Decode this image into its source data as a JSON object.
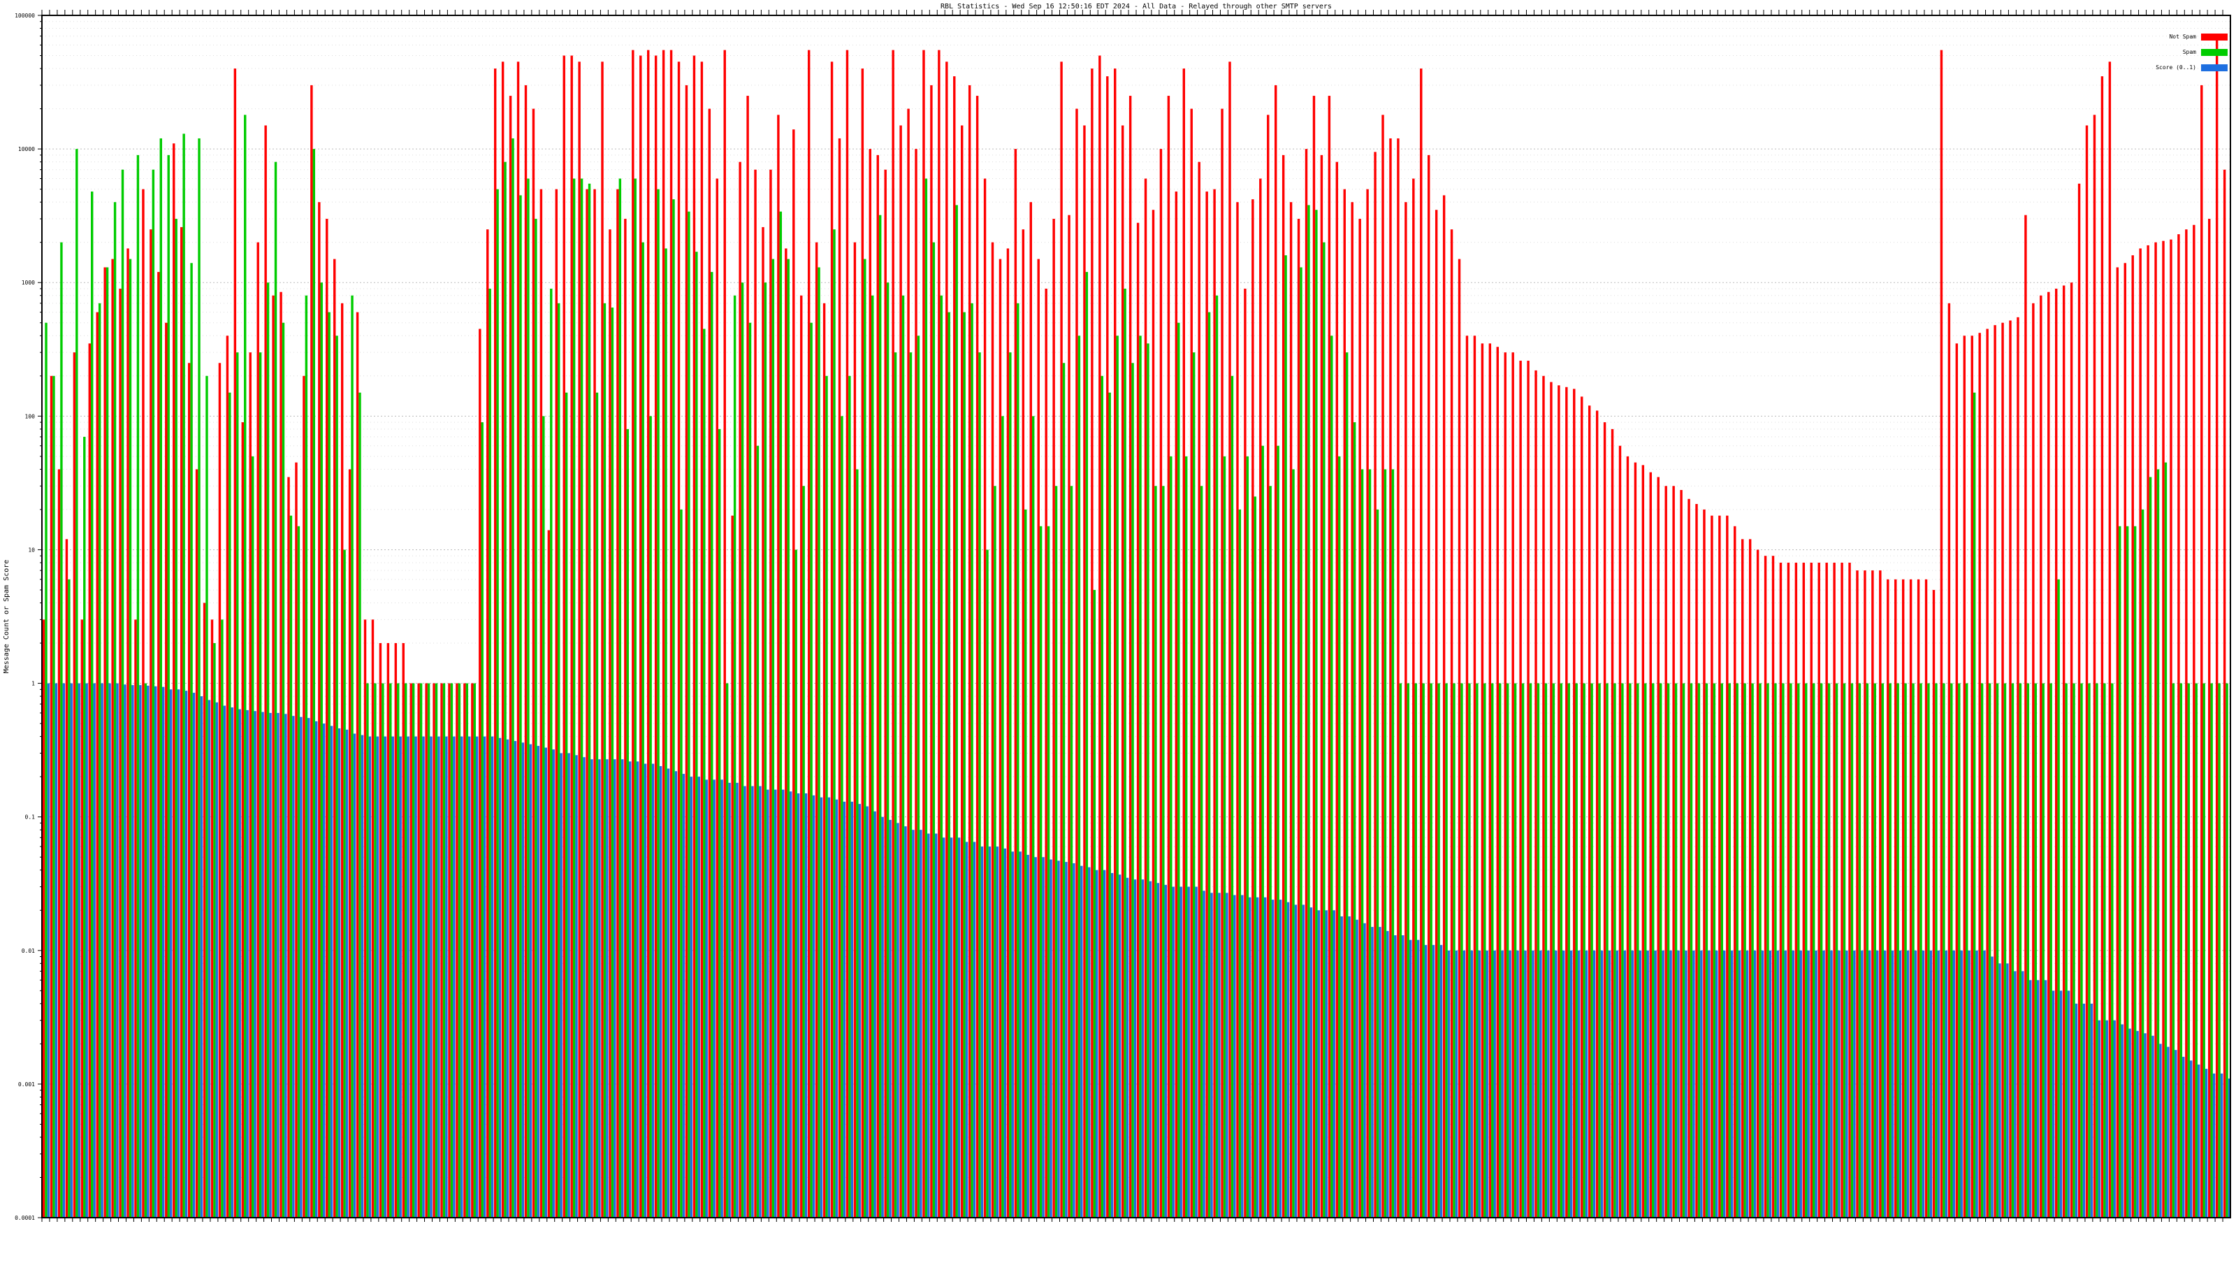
{
  "chart_data": {
    "type": "bar",
    "title": "RBL Statistics - Wed Sep 16 12:50:16 EDT 2024 - All Data - Relayed through other SMTP servers",
    "ylabel": "Message Count or Spam Score",
    "xlabel": "",
    "y_scale": "log",
    "ylim": [
      0.0001,
      100000
    ],
    "y_ticks": [
      "0.0001",
      "0.001",
      "0.01",
      "0.1",
      "1",
      "10",
      "100",
      "1000",
      "10000",
      "100000"
    ],
    "grid": true,
    "legend_placement": "top-right",
    "colors": {
      "not_spam": "#ff0000",
      "spam": "#00cc00",
      "score": "#1e6fe0",
      "background": "#ffffff",
      "grid": "#bbbbbb"
    },
    "series": [
      {
        "name": "Not Spam",
        "values": [
          3,
          200,
          40,
          12,
          300,
          3,
          350,
          600,
          1300,
          1500,
          900,
          1800,
          3,
          5000,
          2500,
          1200,
          500,
          11000,
          2600,
          250,
          40,
          4,
          3,
          250,
          400,
          40000,
          90,
          300,
          2000,
          15000,
          800,
          850,
          35,
          45,
          200,
          30000,
          4000,
          3000,
          1500,
          700,
          40,
          600,
          3,
          3,
          2,
          2,
          2,
          2,
          1,
          1,
          1,
          1,
          1,
          1,
          1,
          1,
          1,
          450,
          2500,
          40000,
          45000,
          25000,
          45000,
          30000,
          20000,
          5000,
          14,
          5000,
          50000,
          50000,
          45000,
          5000,
          5000,
          45000,
          2500,
          5000,
          3000,
          55000,
          50000,
          55000,
          50000,
          55000,
          55000,
          45000,
          30000,
          50000,
          45000,
          20000,
          6000,
          55000,
          18,
          8000,
          25000,
          7000,
          2600,
          7000,
          18000,
          1800,
          14000,
          800,
          55000,
          2000,
          700,
          45000,
          12000,
          55000,
          2000,
          40000,
          10000,
          9000,
          7000,
          55000,
          15000,
          20000,
          10000,
          55000,
          30000,
          55000,
          45000,
          35000,
          15000,
          30000,
          25000,
          6000,
          2000,
          1500,
          1800,
          10000,
          2500,
          4000,
          1500,
          900,
          3000,
          45000,
          3200,
          20000,
          15000,
          40000,
          50000,
          35000,
          40000,
          15000,
          25000,
          2800,
          6000,
          3500,
          10000,
          25000,
          4800,
          40000,
          20000,
          8000,
          4800,
          5000,
          20000,
          45000,
          4000,
          900,
          4200,
          6000,
          18000,
          30000,
          9000,
          4000,
          3000,
          10000,
          25000,
          9000,
          25000,
          8000,
          5000,
          4000,
          3000,
          5000,
          9500,
          18000,
          12000,
          12000,
          4000,
          6000,
          40000,
          9000,
          3500,
          4500,
          2500,
          1500,
          400,
          400,
          350,
          350,
          330,
          300,
          300,
          260,
          260,
          220,
          200,
          180,
          170,
          165,
          160,
          140,
          120,
          110,
          90,
          80,
          60,
          50,
          45,
          43,
          38,
          35,
          30,
          30,
          28,
          24,
          22,
          20,
          18,
          18,
          18,
          15,
          12,
          12,
          10,
          9,
          9,
          8,
          8,
          8,
          8,
          8,
          8,
          8,
          8,
          8,
          8,
          7,
          7,
          7,
          7,
          6,
          6,
          6,
          6,
          6,
          6,
          5,
          55000,
          700,
          350,
          400,
          400,
          420,
          450,
          480,
          500,
          520,
          550,
          3200,
          700,
          800,
          850,
          900,
          950,
          1000,
          5500,
          15000,
          18000,
          35000,
          45000,
          1300,
          1400,
          1600,
          1800,
          1900,
          2000,
          2050,
          2100,
          2300,
          2500,
          2700,
          30000,
          3000,
          65000,
          7000
        ]
      },
      {
        "name": "Spam",
        "values": [
          500,
          200,
          2000,
          6,
          10000,
          70,
          4800,
          700,
          1300,
          4000,
          7000,
          1500,
          9000,
          1,
          7000,
          12000,
          9000,
          3000,
          13000,
          1400,
          12000,
          200,
          2,
          3,
          150,
          300,
          18000,
          50,
          300,
          1000,
          8000,
          500,
          18,
          15,
          800,
          10000,
          1000,
          600,
          400,
          10,
          800,
          150,
          1,
          1,
          1,
          1,
          1,
          1,
          1,
          1,
          1,
          1,
          1,
          1,
          1,
          1,
          1,
          90,
          900,
          5000,
          8000,
          12000,
          4500,
          6000,
          3000,
          100,
          900,
          700,
          150,
          6000,
          6000,
          5500,
          150,
          700,
          650,
          6000,
          80,
          6000,
          2000,
          100,
          5000,
          1800,
          4200,
          20,
          3400,
          1700,
          450,
          1200,
          80,
          1,
          800,
          1000,
          500,
          60,
          1000,
          1500,
          3400,
          1500,
          10,
          30,
          500,
          1300,
          200,
          2500,
          100,
          200,
          40,
          1500,
          800,
          3200,
          1000,
          300,
          800,
          300,
          400,
          6000,
          2000,
          800,
          600,
          3800,
          600,
          700,
          300,
          10,
          30,
          100,
          300,
          700,
          20,
          100,
          15,
          15,
          30,
          250,
          30,
          400,
          1200,
          5,
          200,
          150,
          400,
          900,
          250,
          400,
          350,
          30,
          30,
          50,
          500,
          50,
          300,
          30,
          600,
          800,
          50,
          200,
          20,
          50,
          25,
          60,
          30,
          60,
          1600,
          40,
          1300,
          3800,
          3500,
          2000,
          400,
          50,
          300,
          90,
          40,
          40,
          20,
          40,
          40,
          1,
          1,
          1,
          1,
          1,
          1,
          1,
          1,
          1,
          1,
          1,
          1,
          1,
          1,
          1,
          1,
          1,
          1,
          1,
          1,
          1,
          1,
          1,
          1,
          1,
          1,
          1,
          1,
          1,
          1,
          1,
          1,
          1,
          1,
          1,
          1,
          1,
          1,
          1,
          1,
          1,
          1,
          1,
          1,
          1,
          1,
          1,
          1,
          1,
          1,
          1,
          1,
          1,
          1,
          1,
          1,
          1,
          1,
          1,
          1,
          1,
          1,
          1,
          1,
          1,
          1,
          1,
          1,
          1,
          1,
          1,
          1,
          1,
          1,
          1,
          150,
          1,
          1,
          1,
          1,
          1,
          1,
          1,
          1,
          1,
          1,
          6,
          1,
          1,
          1,
          1,
          1,
          1,
          1,
          15,
          15,
          15,
          20,
          35,
          40,
          45,
          1,
          1,
          1,
          1,
          1,
          1,
          1,
          1,
          1,
          1,
          1,
          1,
          1,
          15,
          1,
          20,
          7
        ]
      },
      {
        "name": "Score (0..1)",
        "values": [
          1,
          1,
          1,
          1,
          1,
          1,
          1,
          1,
          1,
          1,
          0.98,
          0.97,
          0.97,
          0.96,
          0.95,
          0.94,
          0.9,
          0.9,
          0.88,
          0.85,
          0.8,
          0.75,
          0.72,
          0.68,
          0.66,
          0.64,
          0.63,
          0.62,
          0.61,
          0.6,
          0.6,
          0.59,
          0.57,
          0.56,
          0.55,
          0.52,
          0.5,
          0.48,
          0.46,
          0.45,
          0.42,
          0.41,
          0.4,
          0.4,
          0.4,
          0.4,
          0.4,
          0.4,
          0.4,
          0.4,
          0.4,
          0.4,
          0.4,
          0.4,
          0.4,
          0.4,
          0.4,
          0.4,
          0.4,
          0.39,
          0.38,
          0.37,
          0.36,
          0.35,
          0.34,
          0.33,
          0.32,
          0.3,
          0.3,
          0.29,
          0.28,
          0.27,
          0.27,
          0.27,
          0.27,
          0.27,
          0.26,
          0.26,
          0.25,
          0.25,
          0.24,
          0.23,
          0.22,
          0.21,
          0.2,
          0.2,
          0.19,
          0.19,
          0.19,
          0.18,
          0.18,
          0.17,
          0.17,
          0.17,
          0.16,
          0.16,
          0.16,
          0.155,
          0.15,
          0.15,
          0.145,
          0.14,
          0.14,
          0.135,
          0.13,
          0.13,
          0.125,
          0.12,
          0.11,
          0.1,
          0.095,
          0.09,
          0.085,
          0.08,
          0.08,
          0.075,
          0.075,
          0.07,
          0.07,
          0.07,
          0.065,
          0.065,
          0.06,
          0.06,
          0.06,
          0.058,
          0.055,
          0.055,
          0.052,
          0.05,
          0.05,
          0.048,
          0.047,
          0.046,
          0.045,
          0.043,
          0.042,
          0.04,
          0.04,
          0.038,
          0.037,
          0.035,
          0.034,
          0.034,
          0.033,
          0.032,
          0.031,
          0.03,
          0.03,
          0.03,
          0.03,
          0.028,
          0.027,
          0.027,
          0.027,
          0.026,
          0.026,
          0.025,
          0.025,
          0.025,
          0.024,
          0.024,
          0.023,
          0.022,
          0.022,
          0.021,
          0.02,
          0.02,
          0.02,
          0.018,
          0.018,
          0.017,
          0.016,
          0.015,
          0.015,
          0.014,
          0.013,
          0.013,
          0.012,
          0.012,
          0.011,
          0.011,
          0.011,
          0.01,
          0.01,
          0.01,
          0.01,
          0.01,
          0.01,
          0.01,
          0.01,
          0.01,
          0.01,
          0.01,
          0.01,
          0.01,
          0.01,
          0.01,
          0.01,
          0.01,
          0.01,
          0.01,
          0.01,
          0.01,
          0.01,
          0.01,
          0.01,
          0.01,
          0.01,
          0.01,
          0.01,
          0.01,
          0.01,
          0.01,
          0.01,
          0.01,
          0.01,
          0.01,
          0.01,
          0.01,
          0.01,
          0.01,
          0.01,
          0.01,
          0.01,
          0.01,
          0.01,
          0.01,
          0.01,
          0.01,
          0.01,
          0.01,
          0.01,
          0.01,
          0.01,
          0.01,
          0.01,
          0.01,
          0.01,
          0.01,
          0.01,
          0.01,
          0.01,
          0.01,
          0.01,
          0.01,
          0.01,
          0.01,
          0.01,
          0.01,
          0.01,
          0.01,
          0.01,
          0.01,
          0.009,
          0.008,
          0.008,
          0.007,
          0.007,
          0.006,
          0.006,
          0.006,
          0.005,
          0.005,
          0.005,
          0.004,
          0.004,
          0.004,
          0.003,
          0.003,
          0.003,
          0.0028,
          0.0026,
          0.0025,
          0.0024,
          0.0023,
          0.002,
          0.0019,
          0.0018,
          0.0016,
          0.0015,
          0.0014,
          0.0013,
          0.0012,
          0.0012,
          0.0011,
          0.0011,
          0.001,
          0.001,
          0.001,
          0.0009,
          0.0009,
          0.0008,
          0.0007,
          0.0006,
          0.0005,
          0.0005
        ]
      }
    ]
  }
}
